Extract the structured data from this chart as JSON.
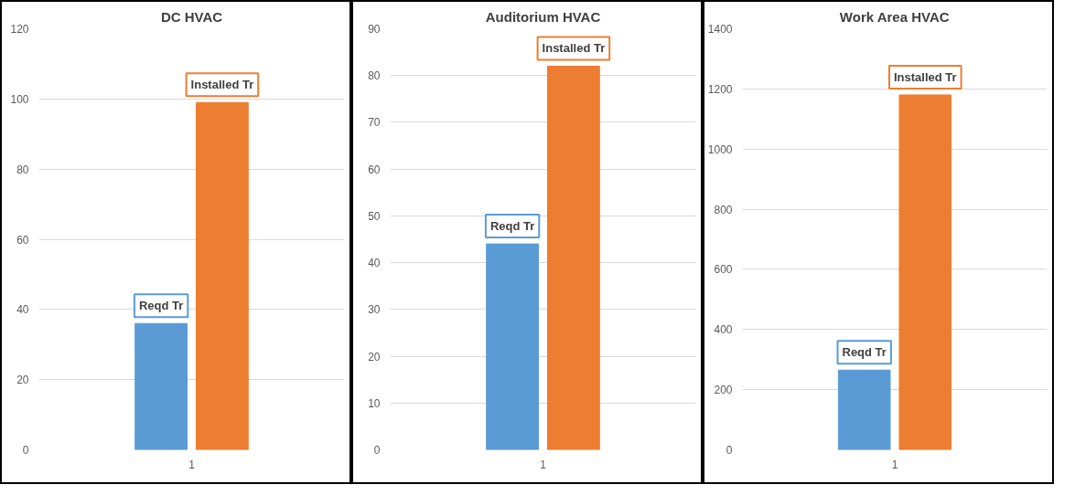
{
  "chart_data": [
    {
      "type": "bar",
      "title": "DC HVAC",
      "categories": [
        "1"
      ],
      "ylim": [
        0,
        120
      ],
      "yticks": [
        0,
        20,
        40,
        60,
        80,
        100,
        120
      ],
      "grid": "y",
      "legend": false,
      "series": [
        {
          "name": "Reqd Tr",
          "color": "#5b9bd5",
          "values": [
            36
          ]
        },
        {
          "name": "Installed Tr",
          "color": "#ed7d31",
          "values": [
            99
          ]
        }
      ]
    },
    {
      "type": "bar",
      "title": "Auditorium HVAC",
      "categories": [
        "1"
      ],
      "ylim": [
        0,
        90
      ],
      "yticks": [
        0,
        10,
        20,
        30,
        40,
        50,
        60,
        70,
        80,
        90
      ],
      "grid": "y",
      "legend": false,
      "series": [
        {
          "name": "Reqd Tr",
          "color": "#5b9bd5",
          "values": [
            44
          ]
        },
        {
          "name": "Installed Tr",
          "color": "#ed7d31",
          "values": [
            82
          ]
        }
      ]
    },
    {
      "type": "bar",
      "title": "Work Area HVAC",
      "categories": [
        "1"
      ],
      "ylim": [
        0,
        1400
      ],
      "yticks": [
        0,
        200,
        400,
        600,
        800,
        1000,
        1200,
        1400
      ],
      "grid": "y",
      "legend": false,
      "series": [
        {
          "name": "Reqd Tr",
          "color": "#5b9bd5",
          "values": [
            265
          ]
        },
        {
          "name": "Installed Tr",
          "color": "#ed7d31",
          "values": [
            1180
          ]
        }
      ]
    }
  ]
}
